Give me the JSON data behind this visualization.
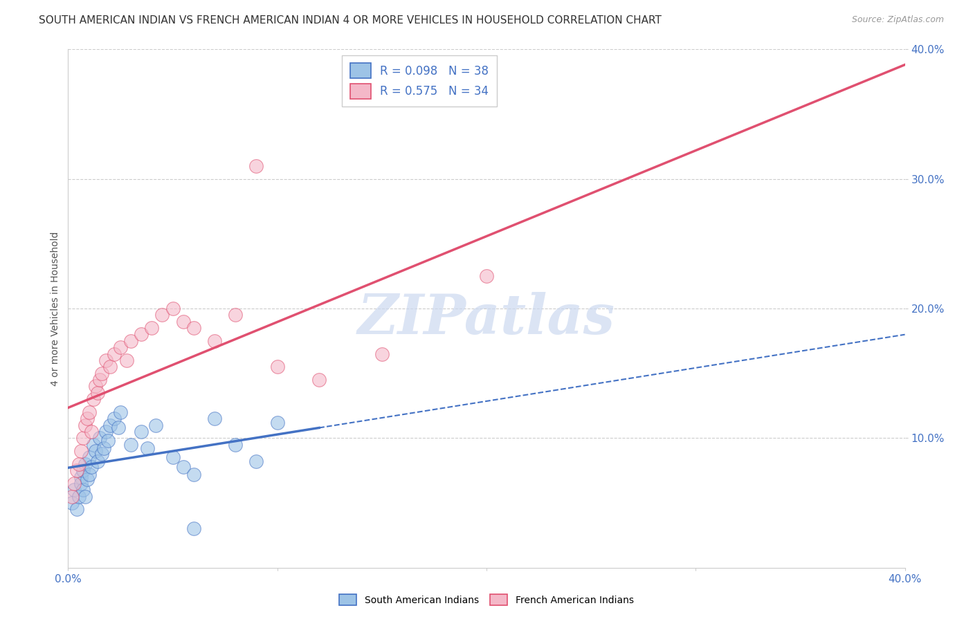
{
  "title": "SOUTH AMERICAN INDIAN VS FRENCH AMERICAN INDIAN 4 OR MORE VEHICLES IN HOUSEHOLD CORRELATION CHART",
  "source": "Source: ZipAtlas.com",
  "ylabel": "4 or more Vehicles in Household",
  "xlim": [
    0.0,
    0.4
  ],
  "ylim": [
    0.0,
    0.4
  ],
  "legend_entries": [
    {
      "label": "R = 0.098   N = 38",
      "facecolor": "#aec6e8",
      "edgecolor": "#5b9bd5"
    },
    {
      "label": "R = 0.575   N = 34",
      "facecolor": "#f4b8c8",
      "edgecolor": "#e05070"
    }
  ],
  "blue_scatter_x": [
    0.002,
    0.003,
    0.004,
    0.005,
    0.006,
    0.006,
    0.007,
    0.007,
    0.008,
    0.008,
    0.009,
    0.01,
    0.01,
    0.011,
    0.012,
    0.013,
    0.014,
    0.015,
    0.016,
    0.017,
    0.018,
    0.019,
    0.02,
    0.022,
    0.024,
    0.025,
    0.03,
    0.035,
    0.038,
    0.042,
    0.05,
    0.055,
    0.06,
    0.07,
    0.08,
    0.09,
    0.1,
    0.06
  ],
  "blue_scatter_y": [
    0.05,
    0.06,
    0.045,
    0.055,
    0.07,
    0.065,
    0.075,
    0.06,
    0.08,
    0.055,
    0.068,
    0.085,
    0.072,
    0.078,
    0.095,
    0.09,
    0.082,
    0.1,
    0.088,
    0.092,
    0.105,
    0.098,
    0.11,
    0.115,
    0.108,
    0.12,
    0.095,
    0.105,
    0.092,
    0.11,
    0.085,
    0.078,
    0.072,
    0.115,
    0.095,
    0.082,
    0.112,
    0.03
  ],
  "pink_scatter_x": [
    0.002,
    0.003,
    0.004,
    0.005,
    0.006,
    0.007,
    0.008,
    0.009,
    0.01,
    0.011,
    0.012,
    0.013,
    0.014,
    0.015,
    0.016,
    0.018,
    0.02,
    0.022,
    0.025,
    0.028,
    0.03,
    0.035,
    0.04,
    0.045,
    0.05,
    0.055,
    0.06,
    0.07,
    0.08,
    0.09,
    0.1,
    0.12,
    0.15,
    0.2
  ],
  "pink_scatter_y": [
    0.055,
    0.065,
    0.075,
    0.08,
    0.09,
    0.1,
    0.11,
    0.115,
    0.12,
    0.105,
    0.13,
    0.14,
    0.135,
    0.145,
    0.15,
    0.16,
    0.155,
    0.165,
    0.17,
    0.16,
    0.175,
    0.18,
    0.185,
    0.195,
    0.2,
    0.19,
    0.185,
    0.175,
    0.195,
    0.31,
    0.155,
    0.145,
    0.165,
    0.225
  ],
  "watermark": "ZIPatlas",
  "watermark_color": "#ccd9f0",
  "bg_color": "#ffffff",
  "grid_color": "#cccccc",
  "blue_line_color": "#4472c4",
  "pink_line_color": "#e05070",
  "blue_scatter_facecolor": "#9dc3e6",
  "blue_scatter_edgecolor": "#4472c4",
  "pink_scatter_facecolor": "#f4b8c8",
  "pink_scatter_edgecolor": "#e05070",
  "title_fontsize": 11,
  "source_fontsize": 9,
  "tick_color": "#4472c4"
}
